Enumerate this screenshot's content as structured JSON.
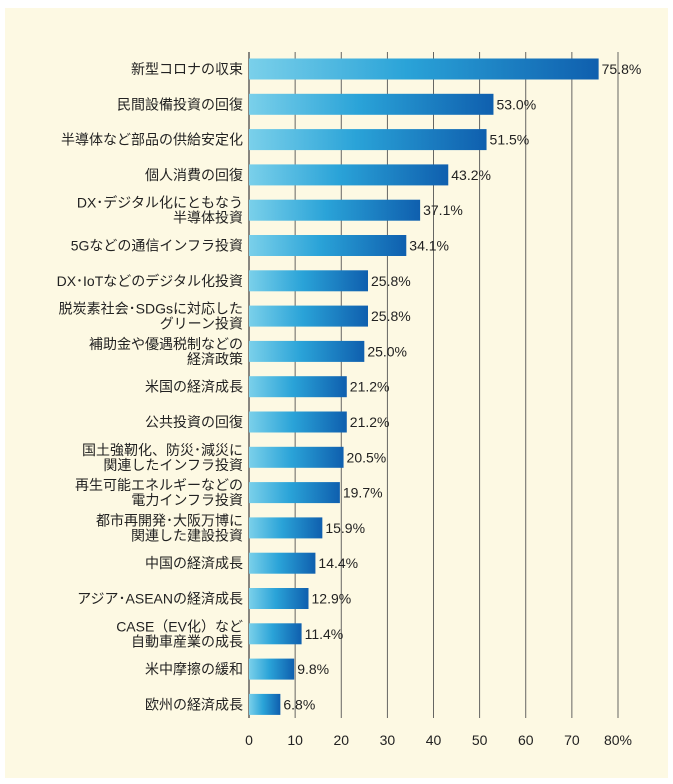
{
  "chart_data": {
    "type": "bar",
    "orientation": "horizontal",
    "categories": [
      [
        "新型コロナの収束"
      ],
      [
        "民間設備投資の回復"
      ],
      [
        "半導体など部品の供給安定化"
      ],
      [
        "個人消費の回復"
      ],
      [
        "DX･デジタル化にともなう",
        "半導体投資"
      ],
      [
        "5Gなどの通信インフラ投資"
      ],
      [
        "DX･IoTなどのデジタル化投資"
      ],
      [
        "脱炭素社会･SDGsに対応した",
        "グリーン投資"
      ],
      [
        "補助金や優遇税制などの",
        "経済政策"
      ],
      [
        "米国の経済成長"
      ],
      [
        "公共投資の回復"
      ],
      [
        "国土強靭化、防災･減災に",
        "関連したインフラ投資"
      ],
      [
        "再生可能エネルギーなどの",
        "電力インフラ投資"
      ],
      [
        "都市再開発･大阪万博に",
        "関連した建設投資"
      ],
      [
        "中国の経済成長"
      ],
      [
        "アジア･ASEANの経済成長"
      ],
      [
        "CASE（EV化）など",
        "自動車産業の成長"
      ],
      [
        "米中摩擦の緩和"
      ],
      [
        "欧州の経済成長"
      ]
    ],
    "values": [
      75.8,
      53.0,
      51.5,
      43.2,
      37.1,
      34.1,
      25.8,
      25.8,
      25.0,
      21.2,
      21.2,
      20.5,
      19.7,
      15.9,
      14.4,
      12.9,
      11.4,
      9.8,
      6.8
    ],
    "value_labels": [
      "75.8%",
      "53.0%",
      "51.5%",
      "43.2%",
      "37.1%",
      "34.1%",
      "25.8%",
      "25.8%",
      "25.0%",
      "21.2%",
      "21.2%",
      "20.5%",
      "19.7%",
      "15.9%",
      "14.4%",
      "12.9%",
      "11.4%",
      "9.8%",
      "6.8%"
    ],
    "xlim": [
      0,
      80
    ],
    "x_ticks": [
      "0",
      "10",
      "20",
      "30",
      "40",
      "50",
      "60",
      "70",
      "80%"
    ],
    "grid": true,
    "colors": {
      "bar_start": "#7ad0ea",
      "bar_mid": "#2aa3d8",
      "bar_end": "#0f5fae",
      "background": "#fdf9e3",
      "grid": "#555555"
    }
  }
}
